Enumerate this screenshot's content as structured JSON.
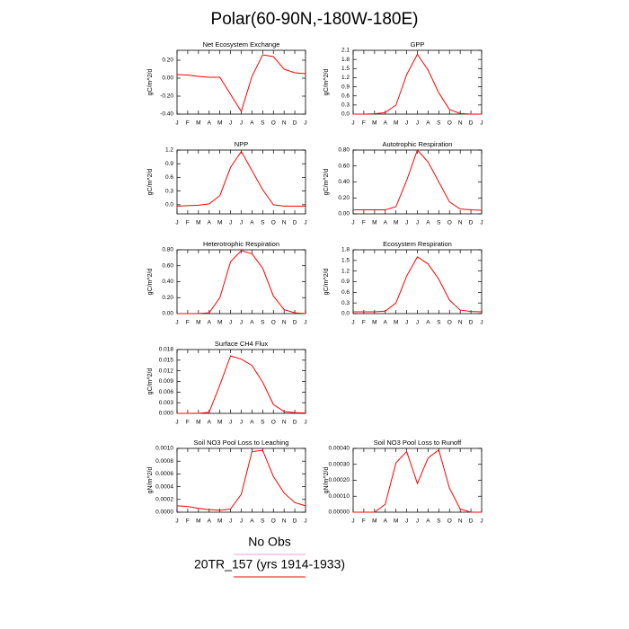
{
  "title": "Polar(60-90N,-180W-180E)",
  "chart_data": [
    {
      "type": "line",
      "title": "Net Ecosystem Exchange",
      "ylabel": "gC/m^2/d",
      "categories": [
        "J",
        "F",
        "M",
        "A",
        "M",
        "J",
        "J",
        "A",
        "S",
        "O",
        "N",
        "D",
        "J"
      ],
      "values": [
        0.04,
        0.035,
        0.02,
        0.01,
        0.01,
        -0.18,
        -0.37,
        0.02,
        0.26,
        0.24,
        0.1,
        0.06,
        0.05
      ],
      "color": "#ff0000",
      "ylim": [
        -0.4,
        0.31
      ],
      "yticks": [
        {
          "value": -0.4,
          "label": "-0.40"
        },
        {
          "value": -0.2,
          "label": "-0.20"
        },
        {
          "value": 0,
          "label": "0.00"
        },
        {
          "value": 0.2,
          "label": "0.20"
        }
      ]
    },
    {
      "type": "line",
      "title": "GPP",
      "ylabel": "gC/m^2/d",
      "categories": [
        "J",
        "F",
        "M",
        "A",
        "M",
        "J",
        "J",
        "A",
        "S",
        "O",
        "N",
        "D",
        "J"
      ],
      "values": [
        0,
        0,
        0.01,
        0.05,
        0.3,
        1.3,
        1.97,
        1.45,
        0.7,
        0.15,
        0.02,
        0,
        0
      ],
      "color": "#ff0000",
      "ylim": [
        0,
        2.1
      ],
      "yticks": [
        {
          "value": 0,
          "label": "0.0"
        },
        0.3,
        0.6,
        0.9,
        1.2,
        1.5,
        1.8,
        2.1
      ]
    },
    {
      "type": "line",
      "title": "NPP",
      "ylabel": "gC/m^2/d",
      "categories": [
        "J",
        "F",
        "M",
        "A",
        "M",
        "J",
        "J",
        "A",
        "S",
        "O",
        "N",
        "D",
        "J"
      ],
      "values": [
        -0.03,
        -0.02,
        -0.01,
        0.02,
        0.2,
        0.82,
        1.17,
        0.75,
        0.33,
        0,
        -0.03,
        -0.03,
        -0.03
      ],
      "color": "#ff0000",
      "ylim": [
        -0.2,
        1.2
      ],
      "yticks": [
        {
          "value": 0,
          "label": "0.0"
        },
        0.3,
        0.6,
        0.9,
        1.2
      ]
    },
    {
      "type": "line",
      "title": "Autotrophic Respiration",
      "ylabel": "gC/m^2/d",
      "categories": [
        "J",
        "F",
        "M",
        "A",
        "M",
        "J",
        "J",
        "A",
        "S",
        "O",
        "N",
        "D",
        "J"
      ],
      "values": [
        0.05,
        0.05,
        0.05,
        0.05,
        0.09,
        0.42,
        0.8,
        0.65,
        0.4,
        0.15,
        0.06,
        0.05,
        0.045
      ],
      "color": "#ff0000",
      "ylim": [
        0,
        0.8
      ],
      "yticks": [
        {
          "value": 0,
          "label": "0.00"
        },
        {
          "value": 0.2,
          "label": "0.20"
        },
        {
          "value": 0.4,
          "label": "0.40"
        },
        {
          "value": 0.6,
          "label": "0.60"
        },
        {
          "value": 0.8,
          "label": "0.80"
        }
      ]
    },
    {
      "type": "line",
      "title": "Heterotrophic Respiration",
      "ylabel": "gC/m^2/d",
      "categories": [
        "J",
        "F",
        "M",
        "A",
        "M",
        "J",
        "J",
        "A",
        "S",
        "O",
        "N",
        "D",
        "J"
      ],
      "values": [
        0,
        0,
        0,
        0.01,
        0.2,
        0.65,
        0.79,
        0.75,
        0.57,
        0.22,
        0.05,
        0.01,
        0
      ],
      "color": "#ff0000",
      "ylim": [
        0,
        0.8
      ],
      "yticks": [
        {
          "value": 0,
          "label": "0.00"
        },
        {
          "value": 0.2,
          "label": "0.20"
        },
        {
          "value": 0.4,
          "label": "0.40"
        },
        {
          "value": 0.6,
          "label": "0.60"
        },
        {
          "value": 0.8,
          "label": "0.80"
        }
      ]
    },
    {
      "type": "line",
      "title": "Ecosystem Respiration",
      "ylabel": "gC/m^2/d",
      "categories": [
        "J",
        "F",
        "M",
        "A",
        "M",
        "J",
        "J",
        "A",
        "S",
        "O",
        "N",
        "D",
        "J"
      ],
      "values": [
        0.05,
        0.05,
        0.05,
        0.07,
        0.3,
        1.06,
        1.6,
        1.4,
        0.97,
        0.38,
        0.1,
        0.06,
        0.05
      ],
      "color": "#ff0000",
      "ylim": [
        0,
        1.8
      ],
      "yticks": [
        {
          "value": 0,
          "label": "0.0"
        },
        0.3,
        0.6,
        0.9,
        1.2,
        1.5,
        1.8
      ]
    },
    {
      "type": "line",
      "title": "Surface CH4 Flux",
      "ylabel": "gC/m^2/d",
      "categories": [
        "J",
        "F",
        "M",
        "A",
        "M",
        "J",
        "J",
        "A",
        "S",
        "O",
        "N",
        "D",
        "J"
      ],
      "values": [
        0,
        0,
        0,
        0.0003,
        0.008,
        0.0162,
        0.0153,
        0.0135,
        0.0088,
        0.0025,
        0.0005,
        0.0002,
        0.0001
      ],
      "color": "#ff0000",
      "ylim": [
        0,
        0.018
      ],
      "yticks": [
        {
          "value": 0,
          "label": "0.000"
        },
        0.003,
        0.006,
        0.009,
        0.012,
        0.015,
        0.018
      ]
    },
    {
      "type": "line",
      "title": "Soil NO3 Pool Loss to Leaching",
      "ylabel": "gN/m^2/d",
      "categories": [
        "J",
        "F",
        "M",
        "A",
        "M",
        "J",
        "J",
        "A",
        "S",
        "O",
        "N",
        "D",
        "J"
      ],
      "values": [
        0.0001,
        9e-05,
        6e-05,
        4e-05,
        3e-05,
        5e-05,
        0.00028,
        0.00095,
        0.00097,
        0.00056,
        0.0003,
        0.00015,
        0.0001
      ],
      "color": "#ff0000",
      "ylim": [
        0,
        0.001
      ],
      "yticks": [
        {
          "value": 0,
          "label": "0.0000"
        },
        {
          "value": 0.0002,
          "label": "0.0002"
        },
        {
          "value": 0.0004,
          "label": "0.0004"
        },
        {
          "value": 0.0006,
          "label": "0.0006"
        },
        {
          "value": 0.0008,
          "label": "0.0008"
        },
        {
          "value": 0.001,
          "label": "0.0010"
        }
      ]
    },
    {
      "type": "line",
      "title": "Soil NO3 Pool Loss to Runoff",
      "ylabel": "gN/m^2/d",
      "categories": [
        "J",
        "F",
        "M",
        "A",
        "M",
        "J",
        "J",
        "A",
        "S",
        "O",
        "N",
        "D",
        "J"
      ],
      "values": [
        0,
        0,
        0,
        5e-05,
        0.00031,
        0.00038,
        0.00018,
        0.00034,
        0.00039,
        0.00015,
        2e-05,
        0,
        0
      ],
      "color": "#ff0000",
      "ylim": [
        0,
        0.0004
      ],
      "yticks": [
        {
          "value": 0,
          "label": "0.00000"
        },
        {
          "value": 0.0001,
          "label": "0.00010"
        },
        {
          "value": 0.0002,
          "label": "0.00020"
        },
        {
          "value": 0.0003,
          "label": "0.00030"
        },
        {
          "value": 0.0004,
          "label": "0.00040"
        }
      ]
    }
  ],
  "legend": [
    {
      "name": "No Obs",
      "color": "#e8a0d8"
    },
    {
      "name": "20TR_157 (yrs 1914-1933)",
      "color": "#ff0000"
    }
  ]
}
